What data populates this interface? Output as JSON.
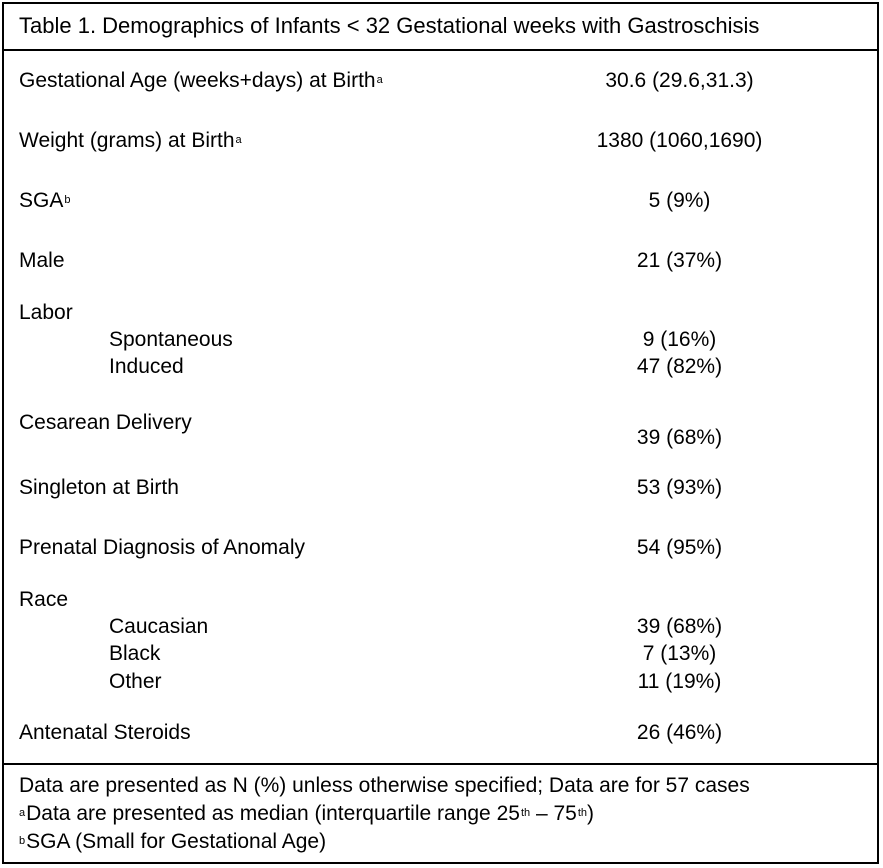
{
  "table": {
    "title": "Table 1. Demographics of Infants < 32 Gestational weeks with Gastroschisis",
    "rows": [
      {
        "label": "Gestational Age (weeks+days) at Birth",
        "sup": "a",
        "value": "30.6 (29.6,31.3)"
      },
      {
        "label": "Weight (grams) at Birth",
        "sup": "a",
        "value": "1380 (1060,1690)"
      },
      {
        "label": "SGA",
        "sup": "b",
        "value": "5 (9%)"
      },
      {
        "label": "Male",
        "value": "21 (37%)"
      },
      {
        "label": "Labor",
        "sub": [
          {
            "label": "Spontaneous",
            "value": "9 (16%)"
          },
          {
            "label": "Induced",
            "value": "47 (82%)"
          }
        ]
      },
      {
        "label": "Cesarean Delivery",
        "value": "39 (68%)"
      },
      {
        "label": "Singleton at Birth",
        "value": "53 (93%)"
      },
      {
        "label": "Prenatal Diagnosis of Anomaly",
        "value": "54 (95%)"
      },
      {
        "label": "Race",
        "sub": [
          {
            "label": "Caucasian",
            "value": "39 (68%)"
          },
          {
            "label": "Black",
            "value": "7 (13%)"
          },
          {
            "label": "Other",
            "value": "11 (19%)"
          }
        ]
      },
      {
        "label": "Antenatal Steroids",
        "value": "26 (46%)"
      }
    ],
    "footnotes": {
      "note1": "Data are presented as N (%) unless otherwise specified; Data are for 57 cases",
      "note2": {
        "marker": "a",
        "text": "Data are presented as median (interquartile range 25",
        "sup1": "th",
        "mid": " – 75",
        "sup2": "th",
        "end": ")"
      },
      "note3": {
        "marker": "b",
        "text": "SGA (Small for Gestational Age)"
      }
    }
  }
}
